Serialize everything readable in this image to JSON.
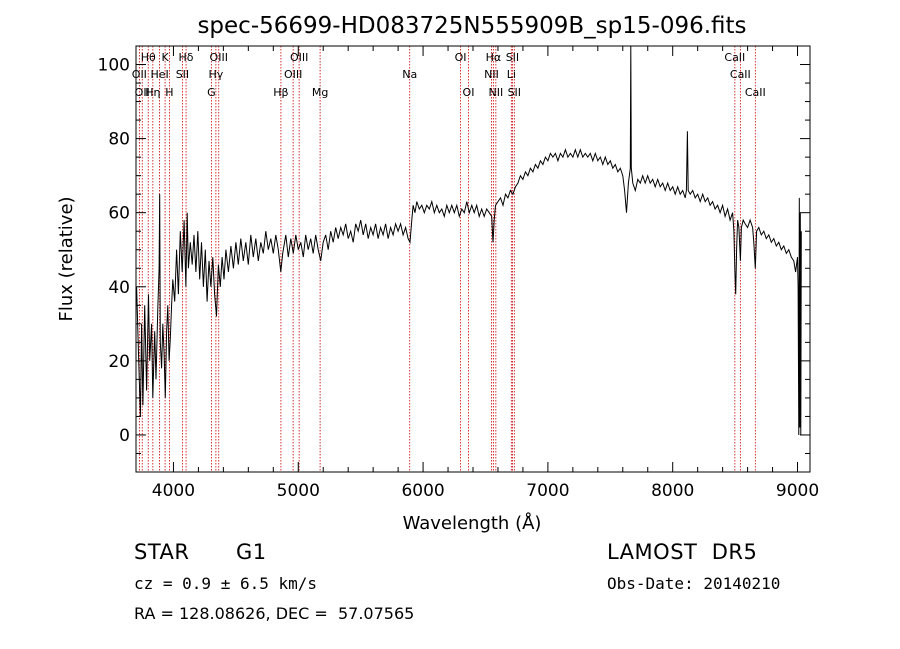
{
  "chart_data": {
    "type": "line",
    "title": "spec-56699-HD083725N555909B_sp15-096.fits",
    "xlabel": "Wavelength (Å)",
    "ylabel": "Flux (relative)",
    "xlim": [
      3700,
      9100
    ],
    "ylim": [
      -10,
      105
    ],
    "xticks": [
      4000,
      5000,
      6000,
      7000,
      8000,
      9000
    ],
    "yticks": [
      0,
      20,
      40,
      60,
      80,
      100
    ],
    "grid": false,
    "colors": {
      "spectrum": "#000000",
      "line_markers": "#cc0000"
    },
    "spectrum_points": [
      [
        3705,
        40
      ],
      [
        3720,
        22
      ],
      [
        3735,
        5
      ],
      [
        3745,
        30
      ],
      [
        3755,
        8
      ],
      [
        3770,
        35
      ],
      [
        3785,
        12
      ],
      [
        3800,
        38
      ],
      [
        3810,
        20
      ],
      [
        3825,
        30
      ],
      [
        3835,
        10
      ],
      [
        3850,
        28
      ],
      [
        3860,
        15
      ],
      [
        3875,
        34
      ],
      [
        3885,
        45
      ],
      [
        3890,
        65
      ],
      [
        3895,
        25
      ],
      [
        3905,
        18
      ],
      [
        3915,
        30
      ],
      [
        3925,
        22
      ],
      [
        3935,
        10
      ],
      [
        3945,
        28
      ],
      [
        3955,
        35
      ],
      [
        3965,
        20
      ],
      [
        3975,
        26
      ],
      [
        3985,
        35
      ],
      [
        3995,
        42
      ],
      [
        4010,
        36
      ],
      [
        4025,
        50
      ],
      [
        4040,
        38
      ],
      [
        4055,
        55
      ],
      [
        4070,
        44
      ],
      [
        4085,
        58
      ],
      [
        4100,
        40
      ],
      [
        4110,
        60
      ],
      [
        4120,
        45
      ],
      [
        4135,
        52
      ],
      [
        4150,
        46
      ],
      [
        4165,
        54
      ],
      [
        4180,
        44
      ],
      [
        4195,
        55
      ],
      [
        4210,
        42
      ],
      [
        4225,
        52
      ],
      [
        4240,
        40
      ],
      [
        4255,
        50
      ],
      [
        4270,
        36
      ],
      [
        4285,
        47
      ],
      [
        4300,
        40
      ],
      [
        4315,
        48
      ],
      [
        4330,
        38
      ],
      [
        4345,
        32
      ],
      [
        4360,
        46
      ],
      [
        4375,
        40
      ],
      [
        4390,
        48
      ],
      [
        4405,
        42
      ],
      [
        4420,
        50
      ],
      [
        4440,
        44
      ],
      [
        4460,
        51
      ],
      [
        4480,
        45
      ],
      [
        4500,
        52
      ],
      [
        4520,
        46
      ],
      [
        4540,
        53
      ],
      [
        4560,
        47
      ],
      [
        4580,
        52
      ],
      [
        4600,
        46
      ],
      [
        4620,
        54
      ],
      [
        4640,
        48
      ],
      [
        4660,
        53
      ],
      [
        4680,
        47
      ],
      [
        4700,
        52
      ],
      [
        4720,
        49
      ],
      [
        4740,
        55
      ],
      [
        4760,
        50
      ],
      [
        4780,
        53
      ],
      [
        4800,
        49
      ],
      [
        4820,
        54
      ],
      [
        4840,
        50
      ],
      [
        4860,
        44
      ],
      [
        4875,
        49
      ],
      [
        4900,
        54
      ],
      [
        4920,
        48
      ],
      [
        4940,
        53
      ],
      [
        4960,
        49
      ],
      [
        4980,
        54
      ],
      [
        5000,
        50
      ],
      [
        5020,
        52
      ],
      [
        5040,
        48
      ],
      [
        5060,
        54
      ],
      [
        5080,
        50
      ],
      [
        5100,
        53
      ],
      [
        5120,
        49
      ],
      [
        5140,
        54
      ],
      [
        5160,
        50
      ],
      [
        5180,
        47
      ],
      [
        5200,
        52
      ],
      [
        5220,
        54
      ],
      [
        5240,
        50
      ],
      [
        5260,
        55
      ],
      [
        5280,
        52
      ],
      [
        5300,
        56
      ],
      [
        5320,
        53
      ],
      [
        5340,
        56
      ],
      [
        5360,
        54
      ],
      [
        5380,
        57
      ],
      [
        5400,
        53
      ],
      [
        5420,
        55
      ],
      [
        5440,
        52
      ],
      [
        5460,
        57
      ],
      [
        5480,
        55
      ],
      [
        5500,
        58
      ],
      [
        5520,
        54
      ],
      [
        5540,
        57
      ],
      [
        5560,
        53
      ],
      [
        5580,
        56
      ],
      [
        5600,
        54
      ],
      [
        5620,
        57
      ],
      [
        5640,
        53
      ],
      [
        5660,
        56
      ],
      [
        5680,
        54
      ],
      [
        5700,
        57
      ],
      [
        5720,
        53
      ],
      [
        5740,
        56
      ],
      [
        5760,
        54
      ],
      [
        5780,
        57
      ],
      [
        5800,
        55
      ],
      [
        5820,
        57
      ],
      [
        5840,
        54
      ],
      [
        5860,
        56
      ],
      [
        5880,
        53
      ],
      [
        5895,
        52
      ],
      [
        5910,
        58
      ],
      [
        5920,
        62
      ],
      [
        5935,
        60
      ],
      [
        5950,
        63
      ],
      [
        5970,
        61
      ],
      [
        5990,
        62
      ],
      [
        6010,
        60
      ],
      [
        6030,
        62
      ],
      [
        6050,
        61
      ],
      [
        6070,
        63
      ],
      [
        6090,
        60
      ],
      [
        6110,
        62
      ],
      [
        6130,
        60
      ],
      [
        6150,
        61
      ],
      [
        6170,
        59
      ],
      [
        6190,
        62
      ],
      [
        6210,
        60
      ],
      [
        6230,
        62
      ],
      [
        6250,
        60
      ],
      [
        6270,
        62
      ],
      [
        6290,
        59
      ],
      [
        6310,
        61
      ],
      [
        6330,
        60
      ],
      [
        6350,
        63
      ],
      [
        6370,
        60
      ],
      [
        6390,
        62
      ],
      [
        6410,
        60
      ],
      [
        6430,
        62
      ],
      [
        6450,
        59
      ],
      [
        6470,
        61
      ],
      [
        6490,
        59
      ],
      [
        6510,
        61
      ],
      [
        6530,
        60
      ],
      [
        6550,
        59
      ],
      [
        6560,
        52
      ],
      [
        6570,
        58
      ],
      [
        6580,
        62
      ],
      [
        6600,
        63
      ],
      [
        6620,
        64
      ],
      [
        6640,
        62
      ],
      [
        6660,
        65
      ],
      [
        6680,
        64
      ],
      [
        6700,
        66
      ],
      [
        6720,
        65
      ],
      [
        6740,
        67
      ],
      [
        6760,
        68
      ],
      [
        6780,
        70
      ],
      [
        6800,
        69
      ],
      [
        6820,
        71
      ],
      [
        6840,
        70
      ],
      [
        6860,
        72
      ],
      [
        6880,
        71
      ],
      [
        6900,
        73
      ],
      [
        6920,
        72
      ],
      [
        6940,
        74
      ],
      [
        6960,
        73
      ],
      [
        6980,
        75
      ],
      [
        7000,
        74
      ],
      [
        7020,
        76
      ],
      [
        7040,
        75
      ],
      [
        7060,
        76
      ],
      [
        7080,
        74
      ],
      [
        7100,
        76
      ],
      [
        7120,
        75
      ],
      [
        7140,
        77
      ],
      [
        7160,
        75
      ],
      [
        7180,
        76
      ],
      [
        7200,
        75
      ],
      [
        7220,
        77
      ],
      [
        7240,
        75
      ],
      [
        7260,
        77
      ],
      [
        7280,
        75
      ],
      [
        7300,
        76
      ],
      [
        7320,
        75
      ],
      [
        7340,
        76
      ],
      [
        7360,
        74
      ],
      [
        7380,
        76
      ],
      [
        7400,
        74
      ],
      [
        7420,
        75
      ],
      [
        7440,
        73
      ],
      [
        7460,
        75
      ],
      [
        7480,
        73
      ],
      [
        7500,
        74
      ],
      [
        7520,
        72
      ],
      [
        7540,
        73
      ],
      [
        7560,
        71
      ],
      [
        7580,
        72
      ],
      [
        7600,
        70
      ],
      [
        7615,
        66
      ],
      [
        7630,
        60
      ],
      [
        7645,
        68
      ],
      [
        7660,
        72
      ],
      [
        7664,
        108
      ],
      [
        7668,
        72
      ],
      [
        7680,
        68
      ],
      [
        7700,
        66
      ],
      [
        7720,
        69
      ],
      [
        7740,
        68
      ],
      [
        7760,
        70
      ],
      [
        7780,
        68
      ],
      [
        7800,
        70
      ],
      [
        7820,
        68
      ],
      [
        7840,
        69
      ],
      [
        7860,
        67
      ],
      [
        7880,
        69
      ],
      [
        7900,
        67
      ],
      [
        7920,
        68
      ],
      [
        7940,
        66
      ],
      [
        7960,
        68
      ],
      [
        7980,
        66
      ],
      [
        8000,
        67
      ],
      [
        8020,
        65
      ],
      [
        8040,
        67
      ],
      [
        8060,
        65
      ],
      [
        8080,
        66
      ],
      [
        8100,
        64
      ],
      [
        8110,
        66
      ],
      [
        8118,
        82
      ],
      [
        8124,
        66
      ],
      [
        8140,
        65
      ],
      [
        8160,
        66
      ],
      [
        8180,
        64
      ],
      [
        8200,
        65
      ],
      [
        8220,
        63
      ],
      [
        8240,
        65
      ],
      [
        8260,
        63
      ],
      [
        8280,
        64
      ],
      [
        8300,
        62
      ],
      [
        8320,
        63
      ],
      [
        8340,
        61
      ],
      [
        8360,
        62
      ],
      [
        8380,
        60
      ],
      [
        8400,
        62
      ],
      [
        8420,
        59
      ],
      [
        8440,
        61
      ],
      [
        8460,
        58
      ],
      [
        8480,
        60
      ],
      [
        8490,
        55
      ],
      [
        8498,
        44
      ],
      [
        8505,
        38
      ],
      [
        8512,
        50
      ],
      [
        8520,
        58
      ],
      [
        8530,
        56
      ],
      [
        8542,
        47
      ],
      [
        8550,
        56
      ],
      [
        8565,
        58
      ],
      [
        8580,
        57
      ],
      [
        8600,
        56
      ],
      [
        8620,
        58
      ],
      [
        8640,
        56
      ],
      [
        8650,
        52
      ],
      [
        8662,
        45
      ],
      [
        8672,
        55
      ],
      [
        8690,
        56
      ],
      [
        8710,
        54
      ],
      [
        8730,
        55
      ],
      [
        8750,
        53
      ],
      [
        8770,
        54
      ],
      [
        8790,
        52
      ],
      [
        8810,
        53
      ],
      [
        8830,
        51
      ],
      [
        8850,
        52
      ],
      [
        8870,
        50
      ],
      [
        8890,
        51
      ],
      [
        8910,
        49
      ],
      [
        8930,
        50
      ],
      [
        8950,
        48
      ],
      [
        8970,
        47
      ],
      [
        8985,
        44
      ],
      [
        9000,
        48
      ],
      [
        9005,
        40
      ],
      [
        9010,
        0
      ],
      [
        9014,
        64
      ],
      [
        9018,
        2
      ],
      [
        9022,
        60
      ],
      [
        9026,
        0
      ],
      [
        9030,
        55
      ]
    ],
    "line_markers": [
      {
        "wavelength": 3727,
        "label": "OII",
        "row": 1
      },
      {
        "wavelength": 3750,
        "label": "OII",
        "row": 2
      },
      {
        "wavelength": 3798,
        "label": "Hθ",
        "row": 0
      },
      {
        "wavelength": 3835,
        "label": "Hη",
        "row": 2
      },
      {
        "wavelength": 3889,
        "label": "HeI",
        "row": 1
      },
      {
        "wavelength": 3933,
        "label": "K",
        "row": 0
      },
      {
        "wavelength": 3968,
        "label": "H",
        "row": 2
      },
      {
        "wavelength": 4072,
        "label": "SII",
        "row": 1
      },
      {
        "wavelength": 4101,
        "label": "Hδ",
        "row": 0
      },
      {
        "wavelength": 4304,
        "label": "G",
        "row": 2
      },
      {
        "wavelength": 4340,
        "label": "Hγ",
        "row": 1
      },
      {
        "wavelength": 4363,
        "label": "OIII",
        "row": 0
      },
      {
        "wavelength": 4861,
        "label": "Hβ",
        "row": 2
      },
      {
        "wavelength": 4959,
        "label": "OIII",
        "row": 1
      },
      {
        "wavelength": 5007,
        "label": "OIII",
        "row": 0
      },
      {
        "wavelength": 5175,
        "label": "Mg",
        "row": 2
      },
      {
        "wavelength": 5893,
        "label": "Na",
        "row": 1
      },
      {
        "wavelength": 6300,
        "label": "OI",
        "row": 0
      },
      {
        "wavelength": 6364,
        "label": "OI",
        "row": 2
      },
      {
        "wavelength": 6548,
        "label": "NII",
        "row": 1
      },
      {
        "wavelength": 6563,
        "label": "Hα",
        "row": 0
      },
      {
        "wavelength": 6583,
        "label": "NII",
        "row": 2
      },
      {
        "wavelength": 6707,
        "label": "Li",
        "row": 1
      },
      {
        "wavelength": 6716,
        "label": "SII",
        "row": 0
      },
      {
        "wavelength": 6731,
        "label": "SII",
        "row": 2
      },
      {
        "wavelength": 8498,
        "label": "CaII",
        "row": 0
      },
      {
        "wavelength": 8542,
        "label": "CaII",
        "row": 1
      },
      {
        "wavelength": 8662,
        "label": "CaII",
        "row": 2
      }
    ]
  },
  "info": {
    "object_class": "STAR",
    "subclass": "G1",
    "survey": "LAMOST  DR5",
    "cz": "cz = 0.9 ± 6.5 km/s",
    "obs_date": "Obs-Date: 20140210",
    "coords": "RA = 128.08626, DEC =  57.07565"
  }
}
